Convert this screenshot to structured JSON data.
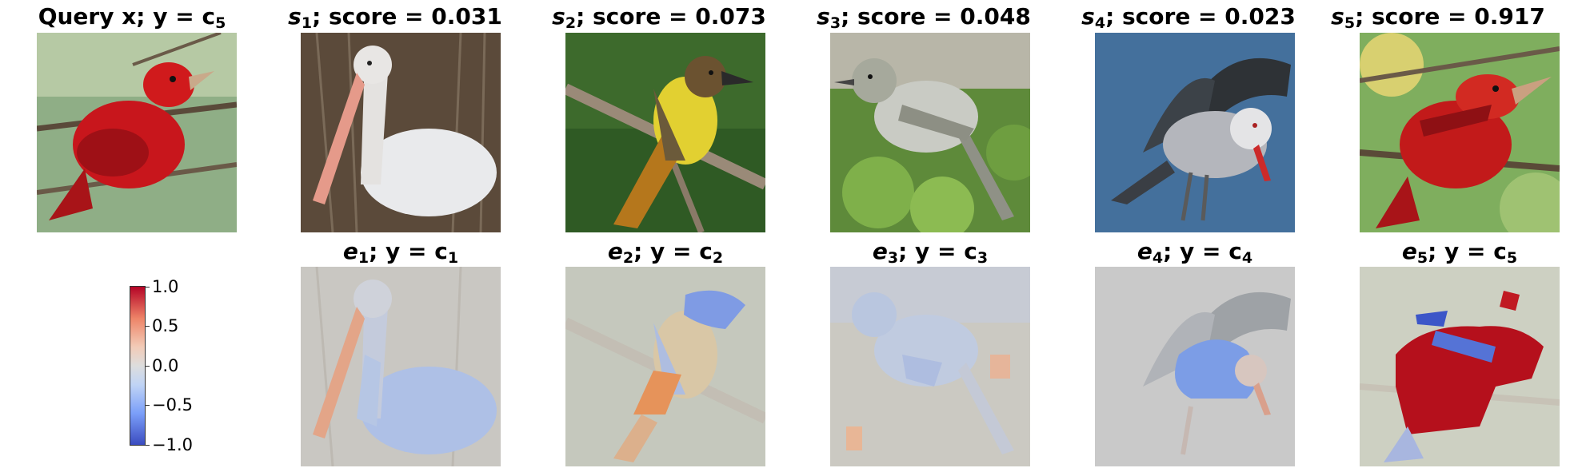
{
  "query": {
    "title": {
      "prefix": "Query x; y",
      "eq": " = ",
      "var": "c",
      "sub": "5"
    }
  },
  "candidates": [
    {
      "s_sub": "1",
      "score_text": "; score = 0.031",
      "score": 0.031
    },
    {
      "s_sub": "2",
      "score_text": "; score = 0.073",
      "score": 0.073
    },
    {
      "s_sub": "3",
      "score_text": "; score = 0.048",
      "score": 0.048
    },
    {
      "s_sub": "4",
      "score_text": "; score = 0.023",
      "score": 0.023
    },
    {
      "s_sub": "5",
      "score_text": "; score = 0.917",
      "score": 0.917
    }
  ],
  "explanations": [
    {
      "e_sub": "1",
      "c_sub": "1"
    },
    {
      "e_sub": "2",
      "c_sub": "2"
    },
    {
      "e_sub": "3",
      "c_sub": "3"
    },
    {
      "e_sub": "4",
      "c_sub": "4"
    },
    {
      "e_sub": "5",
      "c_sub": "5"
    }
  ],
  "colorbar": {
    "ticks": [
      "1.0",
      "0.5",
      "0.0",
      "−0.5",
      "−1.0"
    ],
    "colors": {
      "neg": "#3b4cc0",
      "mid": "#dddddd",
      "pos": "#b40426"
    }
  }
}
